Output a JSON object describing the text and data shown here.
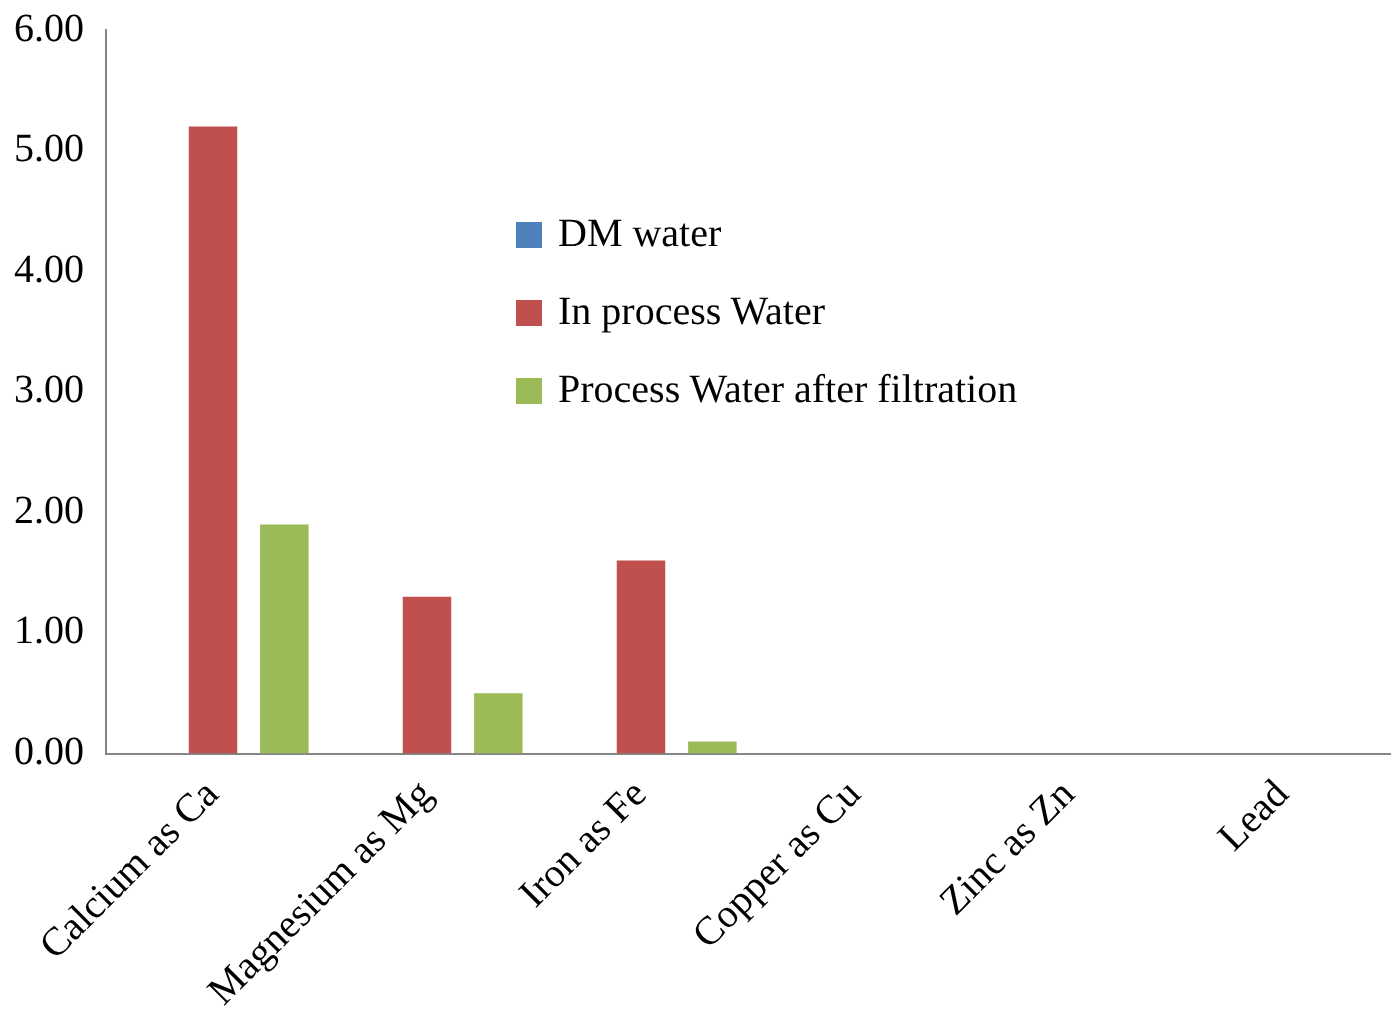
{
  "chart_data": {
    "type": "bar",
    "categories": [
      "Calcium as Ca",
      "Magnesium as Mg",
      "Iron as Fe",
      "Copper as Cu",
      "Zinc as Zn",
      "Lead"
    ],
    "series": [
      {
        "name": "DM water",
        "color": "#4f81bd",
        "values": [
          0,
          0,
          0,
          0,
          0,
          0
        ]
      },
      {
        "name": "In process Water",
        "color": "#c0504d",
        "values": [
          5.2,
          1.3,
          1.6,
          0,
          0,
          0
        ]
      },
      {
        "name": "Process Water after filtration",
        "color": "#9bbb59",
        "values": [
          1.9,
          0.5,
          0.1,
          0,
          0,
          0
        ]
      }
    ],
    "ylim": [
      0,
      6
    ],
    "yticks": [
      {
        "value": 0,
        "label": "0.00"
      },
      {
        "value": 1,
        "label": "1.00"
      },
      {
        "value": 2,
        "label": "2.00"
      },
      {
        "value": 3,
        "label": "3.00"
      },
      {
        "value": 4,
        "label": "4.00"
      },
      {
        "value": 5,
        "label": "5.00"
      },
      {
        "value": 6,
        "label": "6.00"
      }
    ],
    "grid": false,
    "legend": "top"
  }
}
